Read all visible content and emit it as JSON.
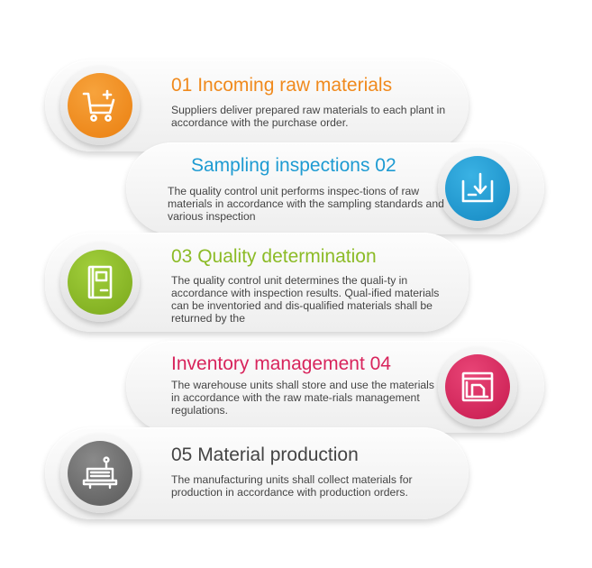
{
  "steps": [
    {
      "number": "01",
      "title": "01 Incoming raw materials",
      "desc": "Suppliers deliver prepared raw materials to each plant in accordance with the purchase order.",
      "color": "#f08a1d",
      "icon": "shopping-cart-plus-icon"
    },
    {
      "number": "02",
      "title": "Sampling inspections 02",
      "desc": "The quality control unit performs inspec-tions of raw materials in accordance with the sampling standards and various inspection",
      "color": "#1e9bd2",
      "icon": "download-tray-icon"
    },
    {
      "number": "03",
      "title": "03 Quality determination",
      "desc": "The quality control unit determines the quali-ty in accordance with inspection results. Qual-ified materials can be inventoried and dis-qualified materials shall be returned by the",
      "color": "#8cbb26",
      "icon": "document-book-icon"
    },
    {
      "number": "04",
      "title": "Inventory management 04",
      "desc": "The warehouse units shall store and use the materials in accordance with the raw mate-rials management regulations.",
      "color": "#d8245c",
      "icon": "window-document-icon"
    },
    {
      "number": "05",
      "title": "05 Material production",
      "desc": "The manufacturing units shall collect materials for production in accordance with production orders.",
      "color": "#6e6e6e",
      "icon": "production-machine-icon"
    }
  ]
}
